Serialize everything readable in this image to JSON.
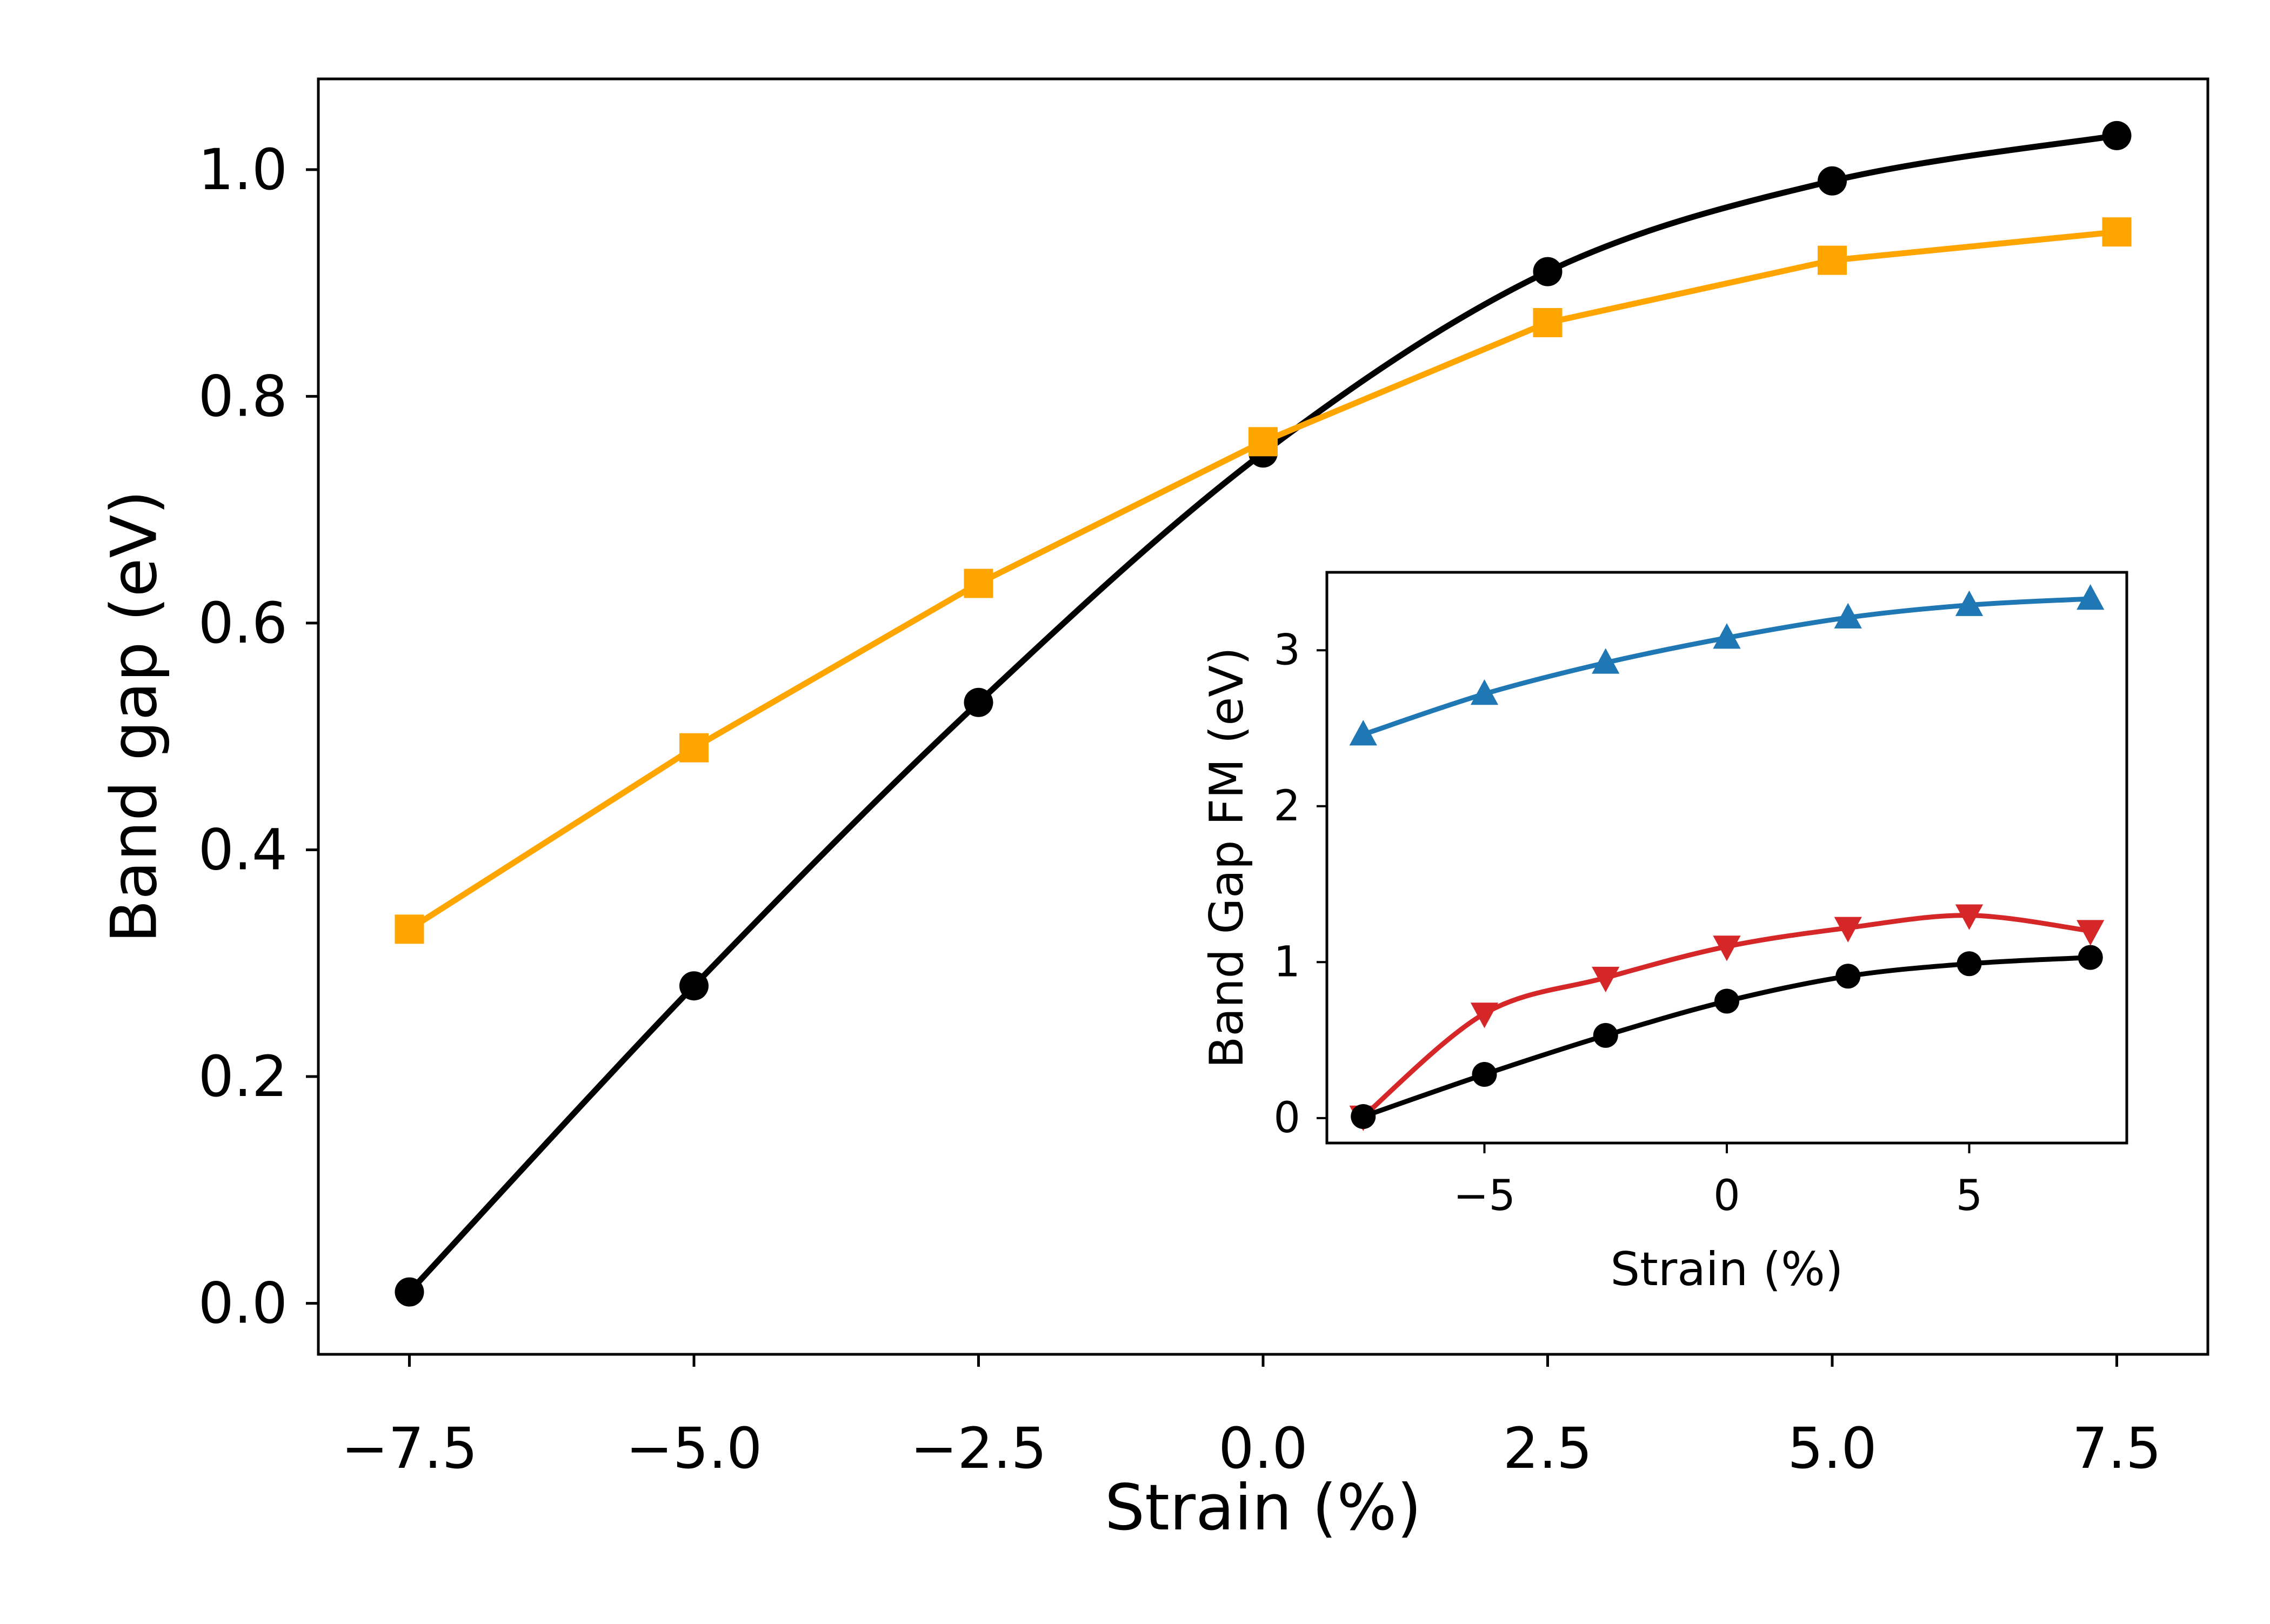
{
  "chart_data": [
    {
      "type": "line",
      "panel": "main",
      "title": "",
      "xlabel": "Strain (%)",
      "ylabel": "Band gap (eV)",
      "xlim": [
        -8.3,
        8.3
      ],
      "ylim": [
        -0.045,
        1.08
      ],
      "xticks": [
        -7.5,
        -5.0,
        -2.5,
        0.0,
        2.5,
        5.0,
        7.5
      ],
      "xtick_labels": [
        "−7.5",
        "−5.0",
        "−2.5",
        "0.0",
        "2.5",
        "5.0",
        "7.5"
      ],
      "yticks": [
        0.0,
        0.2,
        0.4,
        0.6,
        0.8,
        1.0
      ],
      "ytick_labels": [
        "0.0",
        "0.2",
        "0.4",
        "0.6",
        "0.8",
        "1.0"
      ],
      "grid": false,
      "x": [
        -7.5,
        -5.0,
        -2.5,
        0.0,
        2.5,
        5.0,
        7.5
      ],
      "series": [
        {
          "name": "black circles",
          "color": "#000000",
          "marker": "circle",
          "smooth": true,
          "values": [
            0.01,
            0.28,
            0.53,
            0.75,
            0.91,
            0.99,
            1.03
          ]
        },
        {
          "name": "orange squares",
          "color": "#ffa500",
          "marker": "square",
          "smooth": false,
          "values": [
            0.33,
            0.49,
            0.635,
            0.76,
            0.865,
            0.92,
            0.945
          ]
        }
      ]
    },
    {
      "type": "line",
      "panel": "inset",
      "title": "",
      "xlabel": "Strain (%)",
      "ylabel": "Band Gap FM (eV)",
      "xlim": [
        -8.25,
        8.25
      ],
      "ylim": [
        -0.16,
        3.5
      ],
      "xticks": [
        -5,
        0,
        5
      ],
      "xtick_labels": [
        "−5",
        "0",
        "5"
      ],
      "yticks": [
        0,
        1,
        2,
        3
      ],
      "ytick_labels": [
        "0",
        "1",
        "2",
        "3"
      ],
      "grid": false,
      "x": [
        -7.5,
        -5.0,
        -2.5,
        0.0,
        2.5,
        5.0,
        7.5
      ],
      "series": [
        {
          "name": "blue triangles up",
          "color": "#1f77b4",
          "marker": "triangle-up",
          "smooth": true,
          "values": [
            2.46,
            2.72,
            2.92,
            3.08,
            3.21,
            3.29,
            3.33
          ]
        },
        {
          "name": "red triangles down",
          "color": "#d62728",
          "marker": "triangle-down",
          "smooth": true,
          "values": [
            0.01,
            0.67,
            0.9,
            1.1,
            1.22,
            1.3,
            1.2
          ]
        },
        {
          "name": "black circles",
          "color": "#000000",
          "marker": "circle",
          "smooth": true,
          "values": [
            0.01,
            0.28,
            0.53,
            0.75,
            0.91,
            0.99,
            1.03
          ]
        }
      ]
    }
  ]
}
